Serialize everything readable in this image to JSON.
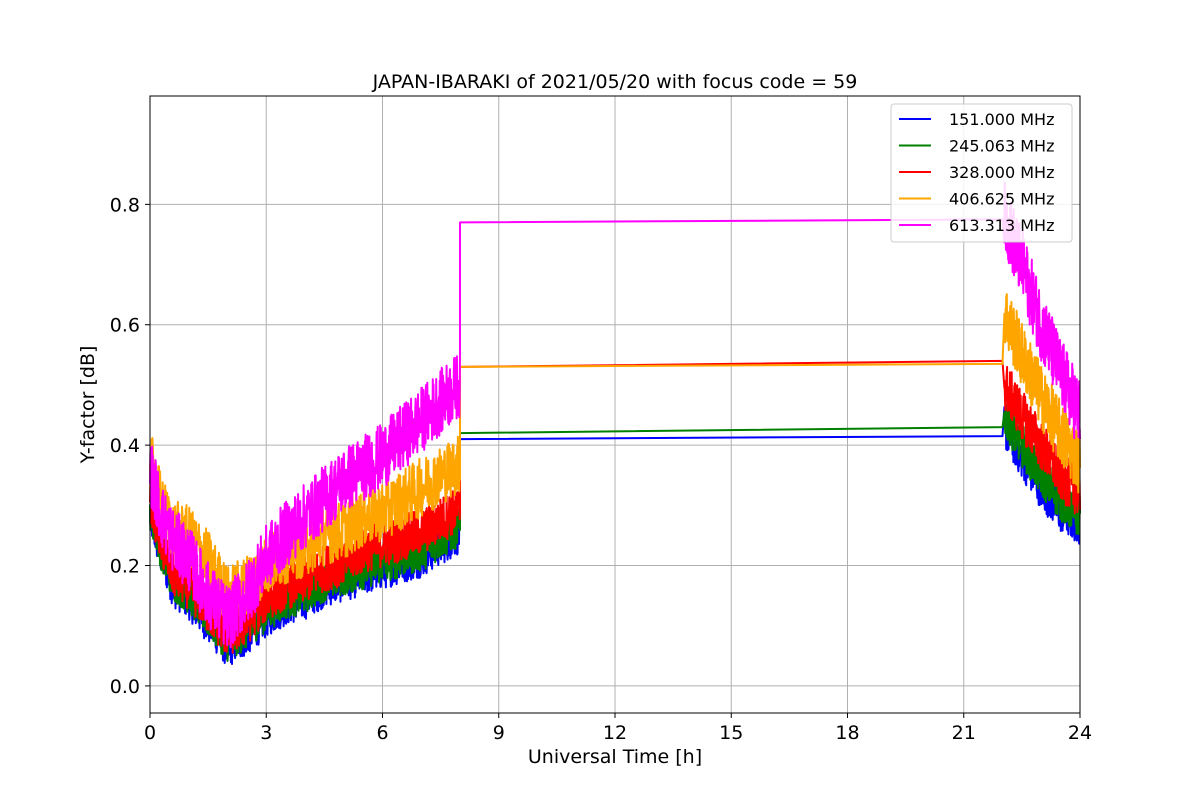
{
  "chart_data": {
    "type": "line",
    "title": "JAPAN-IBARAKI of 2021/05/20 with focus code = 59",
    "xlabel": "Universal Time [h]",
    "ylabel": "Y-factor [dB]",
    "xlim": [
      0,
      24
    ],
    "ylim": [
      -0.045,
      0.98
    ],
    "xticks": [
      0,
      3,
      6,
      9,
      12,
      15,
      18,
      21,
      24
    ],
    "yticks": [
      0.0,
      0.2,
      0.4,
      0.6,
      0.8
    ],
    "ytick_labels": [
      "0.0",
      "0.2",
      "0.4",
      "0.6",
      "0.8"
    ],
    "grid": true,
    "legend_position": "top-right",
    "series": [
      {
        "name": "151.000 MHz",
        "color": "#0000ff",
        "x": [
          0,
          0.3,
          0.6,
          1.0,
          1.5,
          2.0,
          2.5,
          3.0,
          3.5,
          4.0,
          4.5,
          5.0,
          5.5,
          6.0,
          6.5,
          7.0,
          7.5,
          8.0,
          8.05,
          22.0,
          22.05,
          22.5,
          23.0,
          23.5,
          24.0
        ],
        "y": [
          0.27,
          0.2,
          0.15,
          0.13,
          0.09,
          0.05,
          0.07,
          0.1,
          0.12,
          0.13,
          0.15,
          0.16,
          0.17,
          0.18,
          0.19,
          0.2,
          0.22,
          0.24,
          0.41,
          0.415,
          0.43,
          0.38,
          0.33,
          0.29,
          0.27
        ],
        "noise": 0.03
      },
      {
        "name": "245.063 MHz",
        "color": "#008000",
        "x": [
          0,
          0.3,
          0.6,
          1.0,
          1.5,
          2.0,
          2.5,
          3.0,
          3.5,
          4.0,
          4.5,
          5.0,
          5.5,
          6.0,
          6.5,
          7.0,
          7.5,
          8.0,
          8.05,
          22.0,
          22.05,
          22.5,
          23.0,
          23.5,
          24.0
        ],
        "y": [
          0.28,
          0.21,
          0.16,
          0.14,
          0.1,
          0.06,
          0.08,
          0.11,
          0.13,
          0.14,
          0.16,
          0.17,
          0.18,
          0.19,
          0.2,
          0.21,
          0.23,
          0.25,
          0.42,
          0.43,
          0.45,
          0.4,
          0.35,
          0.31,
          0.28
        ],
        "noise": 0.03
      },
      {
        "name": "328.000 MHz",
        "color": "#ff0000",
        "x": [
          0,
          0.3,
          0.6,
          1.0,
          1.5,
          2.0,
          2.5,
          3.0,
          3.5,
          4.0,
          4.5,
          5.0,
          5.5,
          6.0,
          6.5,
          7.0,
          7.5,
          8.0,
          8.05,
          22.0,
          22.05,
          22.5,
          23.0,
          23.5,
          24.0
        ],
        "y": [
          0.3,
          0.22,
          0.17,
          0.15,
          0.11,
          0.07,
          0.09,
          0.13,
          0.15,
          0.16,
          0.18,
          0.19,
          0.21,
          0.22,
          0.23,
          0.24,
          0.26,
          0.28,
          0.53,
          0.54,
          0.5,
          0.45,
          0.4,
          0.35,
          0.32
        ],
        "noise": 0.035
      },
      {
        "name": "406.625 MHz",
        "color": "#ffa500",
        "x": [
          0,
          0.3,
          0.6,
          1.0,
          1.5,
          2.0,
          2.5,
          3.0,
          3.5,
          4.0,
          4.5,
          5.0,
          5.5,
          6.0,
          6.5,
          7.0,
          7.5,
          8.0,
          8.05,
          22.0,
          22.05,
          22.5,
          23.0,
          23.5,
          24.0
        ],
        "y": [
          0.36,
          0.28,
          0.24,
          0.23,
          0.19,
          0.13,
          0.15,
          0.18,
          0.2,
          0.21,
          0.23,
          0.24,
          0.26,
          0.27,
          0.29,
          0.31,
          0.33,
          0.35,
          0.53,
          0.535,
          0.62,
          0.55,
          0.48,
          0.42,
          0.37
        ],
        "noise": 0.045
      },
      {
        "name": "613.313 MHz",
        "color": "#ff00ff",
        "x": [
          0,
          0.3,
          0.6,
          1.0,
          1.5,
          2.0,
          2.5,
          3.0,
          3.5,
          4.0,
          4.5,
          5.0,
          5.5,
          6.0,
          6.5,
          7.0,
          7.5,
          8.0,
          8.05,
          22.0,
          22.05,
          22.5,
          23.0,
          23.5,
          24.0
        ],
        "y": [
          0.34,
          0.26,
          0.22,
          0.19,
          0.13,
          0.09,
          0.13,
          0.19,
          0.23,
          0.26,
          0.29,
          0.32,
          0.34,
          0.36,
          0.39,
          0.42,
          0.45,
          0.48,
          0.77,
          0.775,
          0.78,
          0.7,
          0.6,
          0.52,
          0.45
        ],
        "noise": 0.05
      }
    ]
  }
}
